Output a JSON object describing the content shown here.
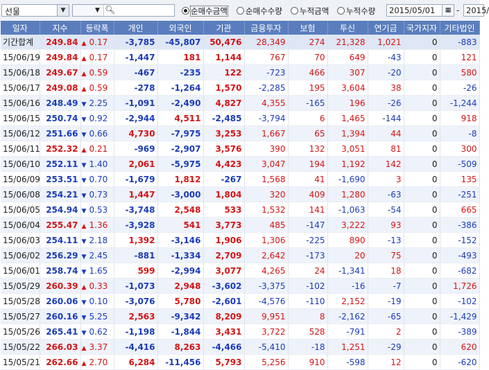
{
  "toolbar": {
    "market_select": "선물",
    "search_icon": "search-icon",
    "radios": [
      {
        "label": "순매수금액",
        "checked": true
      },
      {
        "label": "순매수수량",
        "checked": false
      },
      {
        "label": "누적금액",
        "checked": false
      },
      {
        "label": "누적수량",
        "checked": false
      }
    ],
    "date_from": "2015/05/01",
    "date_sep": "-",
    "date_to": "2015/"
  },
  "columns": [
    "일자",
    "지수",
    "등락폭",
    "개인",
    "외국인",
    "기관",
    "금융투자",
    "보험",
    "투신",
    "연기금",
    "국가지자",
    "기타법인"
  ],
  "rows": [
    {
      "date": "기간합계",
      "index": "249.84",
      "dir": "up",
      "chg": "0.17",
      "p": "-3,785",
      "f": "-45,807",
      "i": "50,476",
      "fin": "28,349",
      "ins": "274",
      "tr": "21,328",
      "pen": "1,021",
      "gov": "0",
      "etc": "-883",
      "total": true
    },
    {
      "date": "15/06/19",
      "index": "249.84",
      "dir": "up",
      "chg": "0.17",
      "p": "-1,447",
      "f": "181",
      "i": "1,144",
      "fin": "767",
      "ins": "70",
      "tr": "649",
      "pen": "-43",
      "gov": "0",
      "etc": "121"
    },
    {
      "date": "15/06/18",
      "index": "249.67",
      "dir": "up",
      "chg": "0.59",
      "p": "-467",
      "f": "-235",
      "i": "122",
      "fin": "-723",
      "ins": "466",
      "tr": "307",
      "pen": "-20",
      "gov": "0",
      "etc": "580"
    },
    {
      "date": "15/06/17",
      "index": "249.08",
      "dir": "up",
      "chg": "0.59",
      "p": "-278",
      "f": "-1,264",
      "i": "1,570",
      "fin": "-2,285",
      "ins": "195",
      "tr": "3,604",
      "pen": "38",
      "gov": "0",
      "etc": "-26"
    },
    {
      "date": "15/06/16",
      "index": "248.49",
      "dir": "dn",
      "chg": "2.25",
      "p": "-1,091",
      "f": "-2,490",
      "i": "4,827",
      "fin": "4,355",
      "ins": "-165",
      "tr": "196",
      "pen": "-26",
      "gov": "0",
      "etc": "-1,244"
    },
    {
      "date": "15/06/15",
      "index": "250.74",
      "dir": "dn",
      "chg": "0.92",
      "p": "-2,944",
      "f": "4,511",
      "i": "-2,485",
      "fin": "-3,794",
      "ins": "6",
      "tr": "1,465",
      "pen": "-144",
      "gov": "0",
      "etc": "918"
    },
    {
      "date": "15/06/12",
      "index": "251.66",
      "dir": "dn",
      "chg": "0.66",
      "p": "4,730",
      "f": "-7,975",
      "i": "3,253",
      "fin": "1,667",
      "ins": "65",
      "tr": "1,394",
      "pen": "44",
      "gov": "0",
      "etc": "-8"
    },
    {
      "date": "15/06/11",
      "index": "252.32",
      "dir": "up",
      "chg": "0.21",
      "p": "-969",
      "f": "-2,907",
      "i": "3,576",
      "fin": "390",
      "ins": "132",
      "tr": "3,051",
      "pen": "81",
      "gov": "0",
      "etc": "300"
    },
    {
      "date": "15/06/10",
      "index": "252.11",
      "dir": "dn",
      "chg": "1.40",
      "p": "2,061",
      "f": "-5,975",
      "i": "4,423",
      "fin": "3,047",
      "ins": "194",
      "tr": "1,192",
      "pen": "142",
      "gov": "0",
      "etc": "-509"
    },
    {
      "date": "15/06/09",
      "index": "253.51",
      "dir": "dn",
      "chg": "0.70",
      "p": "-1,679",
      "f": "1,812",
      "i": "-267",
      "fin": "1,568",
      "ins": "41",
      "tr": "-1,690",
      "pen": "3",
      "gov": "0",
      "etc": "135"
    },
    {
      "date": "15/06/08",
      "index": "254.21",
      "dir": "dn",
      "chg": "0.73",
      "p": "1,447",
      "f": "-3,000",
      "i": "1,804",
      "fin": "320",
      "ins": "409",
      "tr": "1,280",
      "pen": "-63",
      "gov": "0",
      "etc": "-251"
    },
    {
      "date": "15/06/05",
      "index": "254.94",
      "dir": "dn",
      "chg": "0.53",
      "p": "-3,748",
      "f": "2,548",
      "i": "533",
      "fin": "1,532",
      "ins": "141",
      "tr": "-1,063",
      "pen": "-54",
      "gov": "0",
      "etc": "665"
    },
    {
      "date": "15/06/04",
      "index": "255.47",
      "dir": "up",
      "chg": "1.36",
      "p": "-3,928",
      "f": "541",
      "i": "3,773",
      "fin": "485",
      "ins": "-147",
      "tr": "3,222",
      "pen": "93",
      "gov": "0",
      "etc": "-386"
    },
    {
      "date": "15/06/03",
      "index": "254.11",
      "dir": "dn",
      "chg": "2.18",
      "p": "1,392",
      "f": "-3,146",
      "i": "1,906",
      "fin": "1,306",
      "ins": "-225",
      "tr": "890",
      "pen": "-13",
      "gov": "0",
      "etc": "-152"
    },
    {
      "date": "15/06/02",
      "index": "256.29",
      "dir": "dn",
      "chg": "2.45",
      "p": "-881",
      "f": "-1,334",
      "i": "2,709",
      "fin": "2,642",
      "ins": "-173",
      "tr": "20",
      "pen": "75",
      "gov": "0",
      "etc": "-493"
    },
    {
      "date": "15/06/01",
      "index": "258.74",
      "dir": "dn",
      "chg": "1.65",
      "p": "599",
      "f": "-2,994",
      "i": "3,077",
      "fin": "4,265",
      "ins": "24",
      "tr": "-1,341",
      "pen": "18",
      "gov": "0",
      "etc": "-682"
    },
    {
      "date": "15/05/29",
      "index": "260.39",
      "dir": "up",
      "chg": "0.33",
      "p": "-1,073",
      "f": "2,948",
      "i": "-3,602",
      "fin": "-3,375",
      "ins": "-102",
      "tr": "-16",
      "pen": "-7",
      "gov": "0",
      "etc": "1,726"
    },
    {
      "date": "15/05/28",
      "index": "260.06",
      "dir": "dn",
      "chg": "0.10",
      "p": "-3,076",
      "f": "5,780",
      "i": "-2,601",
      "fin": "-4,576",
      "ins": "-110",
      "tr": "2,152",
      "pen": "-19",
      "gov": "0",
      "etc": "-102"
    },
    {
      "date": "15/05/27",
      "index": "260.16",
      "dir": "dn",
      "chg": "5.25",
      "p": "2,563",
      "f": "-9,342",
      "i": "8,209",
      "fin": "9,951",
      "ins": "8",
      "tr": "-2,162",
      "pen": "-65",
      "gov": "0",
      "etc": "-1,429"
    },
    {
      "date": "15/05/26",
      "index": "265.41",
      "dir": "dn",
      "chg": "0.62",
      "p": "-1,198",
      "f": "-1,844",
      "i": "3,431",
      "fin": "3,722",
      "ins": "528",
      "tr": "-791",
      "pen": "2",
      "gov": "0",
      "etc": "-389"
    },
    {
      "date": "15/05/22",
      "index": "266.03",
      "dir": "up",
      "chg": "3.37",
      "p": "-4,416",
      "f": "8,263",
      "i": "-4,466",
      "fin": "-5,410",
      "ins": "-18",
      "tr": "1,251",
      "pen": "-29",
      "gov": "0",
      "etc": "620"
    },
    {
      "date": "15/05/21",
      "index": "262.66",
      "dir": "up",
      "chg": "2.70",
      "p": "6,284",
      "f": "-11,456",
      "i": "5,793",
      "fin": "5,256",
      "ins": "910",
      "tr": "-598",
      "pen": "12",
      "gov": "0",
      "etc": "-620"
    }
  ],
  "colors": {
    "header_bg": "#5a7ebd",
    "up": "#d51414",
    "down": "#1a3cb8",
    "row_alt": "#eef2fa"
  }
}
